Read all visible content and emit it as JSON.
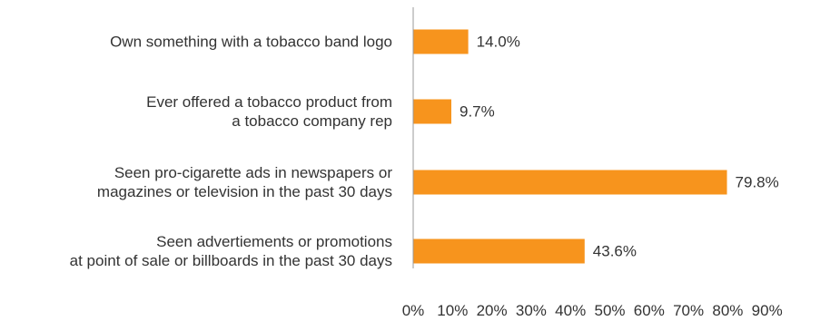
{
  "chart_data": {
    "type": "bar",
    "orientation": "horizontal",
    "title": "",
    "xlabel": "",
    "ylabel": "",
    "categories": [
      [
        "Own something with a tobacco band logo"
      ],
      [
        "Ever offered a tobacco product from",
        "a tobacco company rep"
      ],
      [
        "Seen pro-cigarette ads in newspapers or",
        "magazines or television in the past 30 days"
      ],
      [
        "Seen advertiements or promotions",
        "at point of sale or billboards in the past 30 days"
      ]
    ],
    "values": [
      14.0,
      9.7,
      79.8,
      43.6
    ],
    "value_labels": [
      "14.0%",
      "9.7%",
      "79.8%",
      "43.6%"
    ],
    "xlim": [
      0,
      90
    ],
    "x_ticks": [
      "0%",
      "10%",
      "20%",
      "30%",
      "40%",
      "50%",
      "60%",
      "70%",
      "80%",
      "90%"
    ],
    "grid": false,
    "legend": "none",
    "colors": {
      "bar": "#f7941d",
      "axis": "#999999",
      "text": "#333333"
    }
  }
}
